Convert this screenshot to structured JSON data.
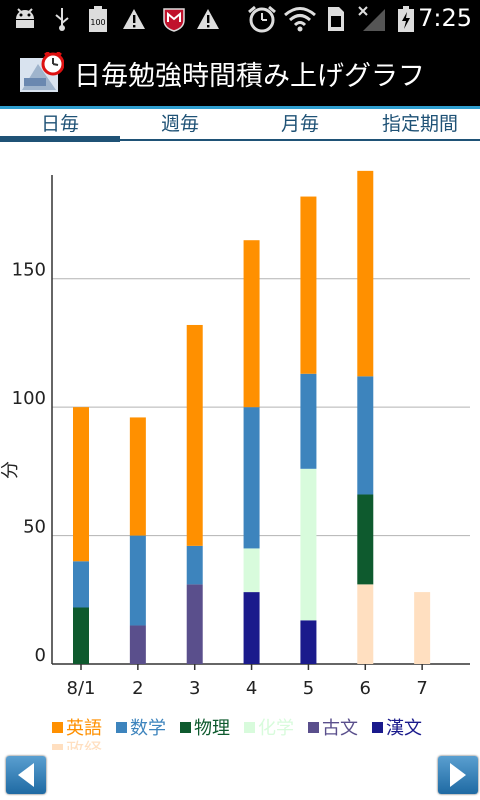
{
  "status": {
    "time": "7:25",
    "icons": [
      "android-debug-icon",
      "usb-icon",
      "battery-100-icon",
      "warning-icon",
      "mcafee-icon",
      "warning-icon",
      "alarm-clock-icon",
      "wifi-icon",
      "sim-icon",
      "signal-icon",
      "battery-charging-icon"
    ],
    "battery_label": "100"
  },
  "app": {
    "title": "日毎勉強時間積み上げグラフ"
  },
  "tabs": [
    {
      "label": "日毎",
      "selected": true
    },
    {
      "label": "週毎",
      "selected": false
    },
    {
      "label": "月毎",
      "selected": false
    },
    {
      "label": "指定期間",
      "selected": false
    }
  ],
  "chart_data": {
    "type": "bar",
    "stacked": true,
    "categories": [
      "8/1",
      "2",
      "3",
      "4",
      "5",
      "6",
      "7"
    ],
    "ylabel": "分",
    "ylim": [
      0,
      190
    ],
    "yticks": [
      0,
      50,
      100,
      150
    ],
    "grid": true,
    "legend_position": "bottom-left",
    "series": [
      {
        "name": "政経",
        "color": "#ffdfc0",
        "values": [
          0,
          0,
          0,
          0,
          0,
          31,
          28
        ]
      },
      {
        "name": "漢文",
        "color": "#1a1a8c",
        "values": [
          0,
          0,
          0,
          28,
          17,
          0,
          0
        ]
      },
      {
        "name": "古文",
        "color": "#5a4f8c",
        "values": [
          0,
          15,
          31,
          0,
          0,
          0,
          0
        ]
      },
      {
        "name": "化学",
        "color": "#d8fbdc",
        "values": [
          0,
          0,
          0,
          17,
          59,
          0,
          0
        ]
      },
      {
        "name": "物理",
        "color": "#0e5a2e",
        "values": [
          22,
          0,
          0,
          0,
          0,
          35,
          0
        ]
      },
      {
        "name": "数学",
        "color": "#3d84bd",
        "values": [
          18,
          35,
          15,
          55,
          37,
          46,
          0
        ]
      },
      {
        "name": "英語",
        "color": "#ff9000",
        "values": [
          60,
          46,
          86,
          65,
          69,
          80,
          0
        ]
      }
    ],
    "legend_order": [
      "英語",
      "数学",
      "物理",
      "化学",
      "古文",
      "漢文",
      "政経"
    ]
  }
}
